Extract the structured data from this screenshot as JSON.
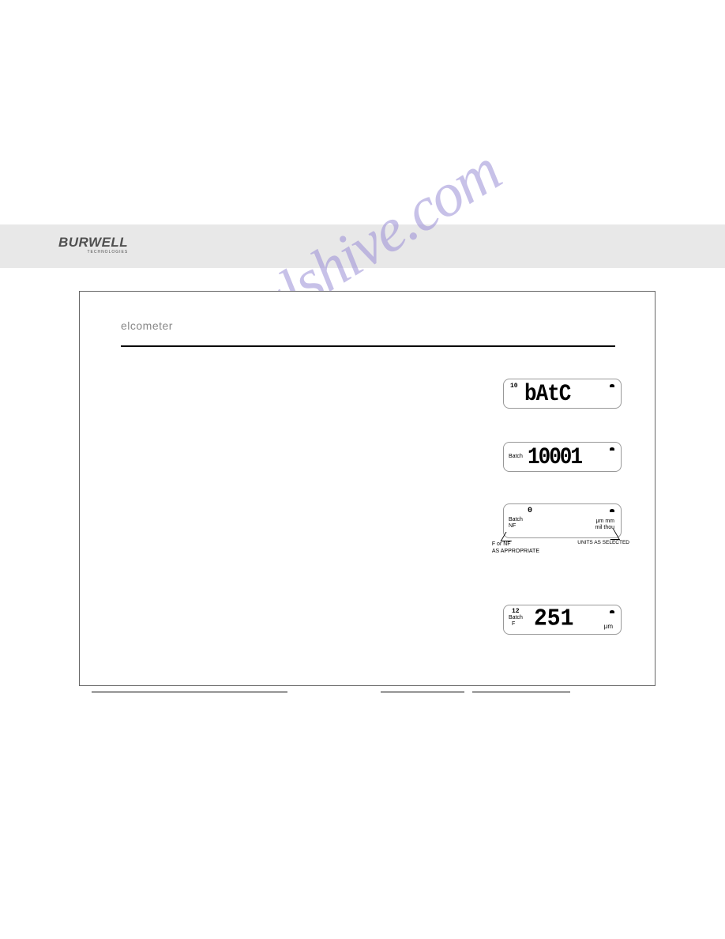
{
  "header": {
    "logo_main": "BURWELL",
    "logo_sub": "TECHNOLOGIES"
  },
  "page": {
    "brand": "elcometer",
    "divider_color": "#000000"
  },
  "watermark": {
    "text": "manualshive.com",
    "color": "#9b8fd6"
  },
  "lcd_panels": {
    "panel1": {
      "top_left_small": "10",
      "main": "bAtC"
    },
    "panel2": {
      "batch_label": "Batch",
      "main": "10001"
    },
    "panel3": {
      "top_center": "0",
      "batch_label": "Batch",
      "nf_label": "NF",
      "units_line1": "μm  mm",
      "units_line2": "mil  thou",
      "caption_left_line1": "F or NF",
      "caption_left_line2": "AS APPROPRIATE",
      "caption_right": "UNITS AS SELECTED"
    },
    "panel4": {
      "top_left_small": "12",
      "batch_label": "Batch",
      "f_label": "F",
      "main": "251",
      "unit_suffix": "μm"
    }
  },
  "colors": {
    "page_bg": "#ffffff",
    "header_bg": "#e8e8e8",
    "logo_text": "#505050",
    "brand_text": "#888888",
    "frame_border": "#666666",
    "lcd_border": "#999999",
    "text": "#000000"
  }
}
